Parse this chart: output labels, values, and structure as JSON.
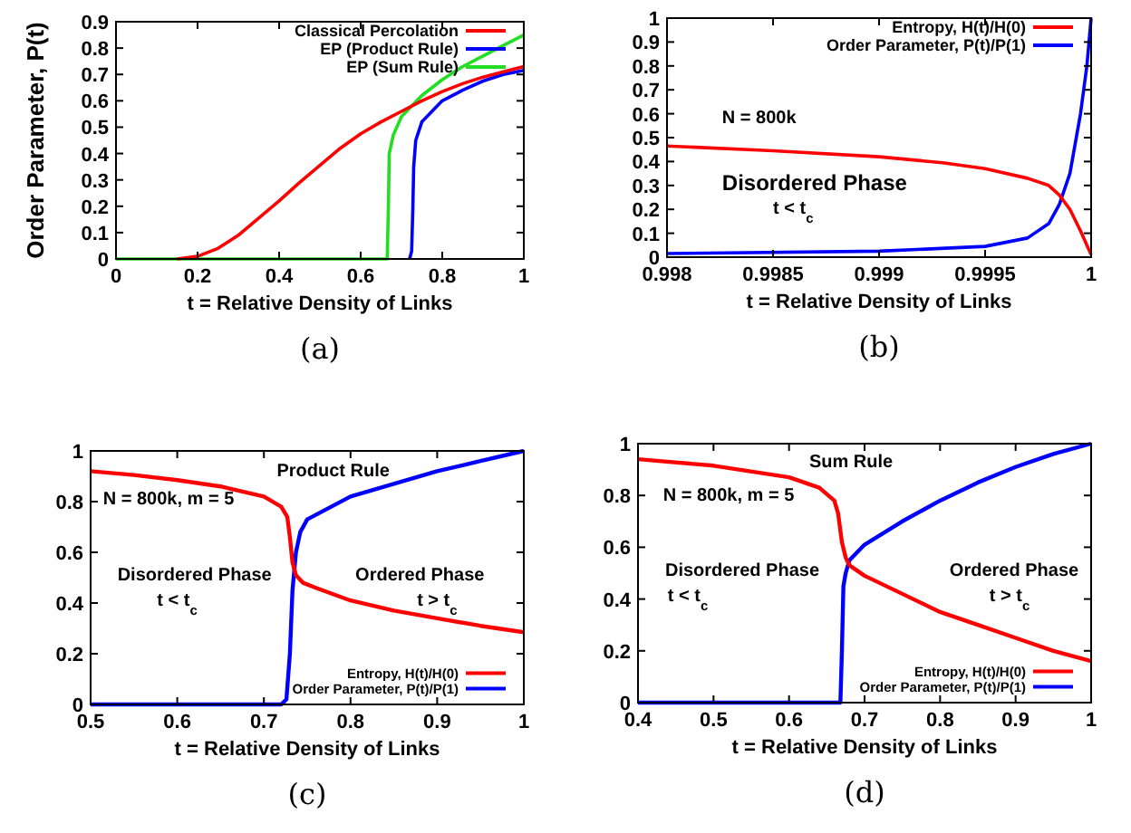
{
  "chart_data": [
    {
      "type": "line",
      "ylabel": "Order Parameter, P(t)",
      "xlabel": "t = Relative Density of Links",
      "xlim": [
        0,
        1
      ],
      "ylim": [
        0,
        0.9
      ],
      "xticks": [
        0,
        0.2,
        0.4,
        0.6,
        0.8,
        1
      ],
      "yticks": [
        0,
        0.1,
        0.2,
        0.3,
        0.4,
        0.5,
        0.6,
        0.7,
        0.8,
        0.9
      ],
      "legend": "top right",
      "grid": false,
      "annotations": [
        "(a)"
      ],
      "series": [
        {
          "name": "Classical Percolation",
          "color": "#ff0000",
          "x": [
            0.15,
            0.2,
            0.25,
            0.3,
            0.35,
            0.4,
            0.45,
            0.5,
            0.55,
            0.6,
            0.65,
            0.7,
            0.75,
            0.8,
            0.85,
            0.9,
            0.95,
            1
          ],
          "values": [
            0,
            0.01,
            0.04,
            0.09,
            0.155,
            0.22,
            0.29,
            0.355,
            0.42,
            0.475,
            0.52,
            0.56,
            0.6,
            0.635,
            0.665,
            0.69,
            0.71,
            0.73
          ]
        },
        {
          "name": "EP (Product Rule)",
          "color": "#0000ff",
          "x": [
            0.72,
            0.725,
            0.728,
            0.73,
            0.735,
            0.75,
            0.8,
            0.85,
            0.9,
            0.95,
            1
          ],
          "values": [
            0,
            0.03,
            0.2,
            0.35,
            0.45,
            0.52,
            0.6,
            0.64,
            0.675,
            0.7,
            0.715
          ]
        },
        {
          "name": "EP (Sum Rule)",
          "color": "#22dd22",
          "x": [
            0,
            0.665,
            0.668,
            0.67,
            0.68,
            0.7,
            0.75,
            0.8,
            0.85,
            0.9,
            0.95,
            1
          ],
          "values": [
            0,
            0,
            0.2,
            0.4,
            0.47,
            0.54,
            0.62,
            0.68,
            0.73,
            0.77,
            0.81,
            0.85
          ]
        }
      ]
    },
    {
      "type": "line",
      "xlabel": "t = Relative Density of Links",
      "xlim": [
        0.998,
        1
      ],
      "ylim": [
        0,
        1
      ],
      "xticks": [
        0.998,
        0.9985,
        0.999,
        0.9995,
        1
      ],
      "yticks": [
        0,
        0.1,
        0.2,
        0.3,
        0.4,
        0.5,
        0.6,
        0.7,
        0.8,
        0.9,
        1
      ],
      "legend": "top right",
      "grid": false,
      "annotations": [
        "N = 800k",
        "Disordered Phase",
        "t < t$_{c}$",
        "(b)"
      ],
      "series": [
        {
          "name": "Entropy, H(t)/H(0)",
          "color": "#ff0000",
          "x": [
            0.998,
            0.9985,
            0.999,
            0.9993,
            0.9995,
            0.9997,
            0.9998,
            0.99985,
            0.9999,
            0.99995,
            1
          ],
          "values": [
            0.465,
            0.445,
            0.42,
            0.395,
            0.37,
            0.33,
            0.3,
            0.26,
            0.2,
            0.11,
            0.01
          ]
        },
        {
          "name": "Order Parameter, P(t)/P(1)",
          "color": "#0000ff",
          "x": [
            0.998,
            0.999,
            0.9995,
            0.9997,
            0.9998,
            0.99985,
            0.9999,
            0.99995,
            0.99998,
            1
          ],
          "values": [
            0.015,
            0.025,
            0.045,
            0.08,
            0.14,
            0.22,
            0.35,
            0.6,
            0.8,
            1
          ]
        }
      ]
    },
    {
      "type": "line",
      "xlabel": "t = Relative Density of Links",
      "xlim": [
        0.5,
        1
      ],
      "ylim": [
        0,
        1
      ],
      "xticks": [
        0.5,
        0.6,
        0.7,
        0.8,
        0.9,
        1
      ],
      "yticks": [
        0,
        0.2,
        0.4,
        0.6,
        0.8,
        1
      ],
      "legend": "bottom right",
      "grid": false,
      "annotations": [
        "Product Rule",
        "N = 800k, m = 5",
        "Disordered Phase",
        "t < t$_{c}$",
        "Ordered Phase",
        "t > t$_{c}$",
        "(c)"
      ],
      "series": [
        {
          "name": "Entropy, H(t)/H(0)",
          "color": "#ff0000",
          "x": [
            0.5,
            0.55,
            0.6,
            0.65,
            0.7,
            0.72,
            0.727,
            0.73,
            0.733,
            0.737,
            0.745,
            0.76,
            0.8,
            0.85,
            0.9,
            0.95,
            1
          ],
          "values": [
            0.92,
            0.905,
            0.885,
            0.86,
            0.82,
            0.78,
            0.74,
            0.66,
            0.56,
            0.51,
            0.48,
            0.46,
            0.41,
            0.37,
            0.34,
            0.31,
            0.285
          ]
        },
        {
          "name": "Order Parameter, P(t)/P(1)",
          "color": "#0000ff",
          "x": [
            0.5,
            0.72,
            0.726,
            0.73,
            0.733,
            0.737,
            0.742,
            0.75,
            0.8,
            0.85,
            0.9,
            0.95,
            1
          ],
          "values": [
            0,
            0,
            0.02,
            0.2,
            0.45,
            0.6,
            0.68,
            0.73,
            0.82,
            0.87,
            0.92,
            0.96,
            1
          ]
        }
      ]
    },
    {
      "type": "line",
      "xlabel": "t = Relative Density of Links",
      "xlim": [
        0.4,
        1
      ],
      "ylim": [
        0,
        1
      ],
      "xticks": [
        0.4,
        0.5,
        0.6,
        0.7,
        0.8,
        0.9,
        1
      ],
      "yticks": [
        0,
        0.2,
        0.4,
        0.6,
        0.8,
        1
      ],
      "legend": "bottom right",
      "grid": false,
      "annotations": [
        "Sum Rule",
        "N = 800k, m = 5",
        "Disordered Phase",
        "t < t$_{c}$",
        "Ordered Phase",
        "t > t$_{c}$",
        "(d)"
      ],
      "series": [
        {
          "name": "Entropy, H(t)/H(0)",
          "color": "#ff0000",
          "x": [
            0.4,
            0.5,
            0.6,
            0.64,
            0.66,
            0.665,
            0.67,
            0.675,
            0.68,
            0.7,
            0.75,
            0.8,
            0.85,
            0.9,
            0.95,
            1
          ],
          "values": [
            0.94,
            0.915,
            0.87,
            0.83,
            0.78,
            0.73,
            0.62,
            0.56,
            0.53,
            0.49,
            0.42,
            0.35,
            0.3,
            0.25,
            0.2,
            0.16
          ]
        },
        {
          "name": "Order Parameter, P(t)/P(1)",
          "color": "#0000ff",
          "x": [
            0.4,
            0.668,
            0.67,
            0.672,
            0.675,
            0.68,
            0.7,
            0.75,
            0.8,
            0.85,
            0.9,
            0.95,
            1
          ],
          "values": [
            0,
            0,
            0.2,
            0.45,
            0.5,
            0.55,
            0.61,
            0.7,
            0.78,
            0.85,
            0.91,
            0.96,
            1
          ]
        }
      ]
    }
  ]
}
